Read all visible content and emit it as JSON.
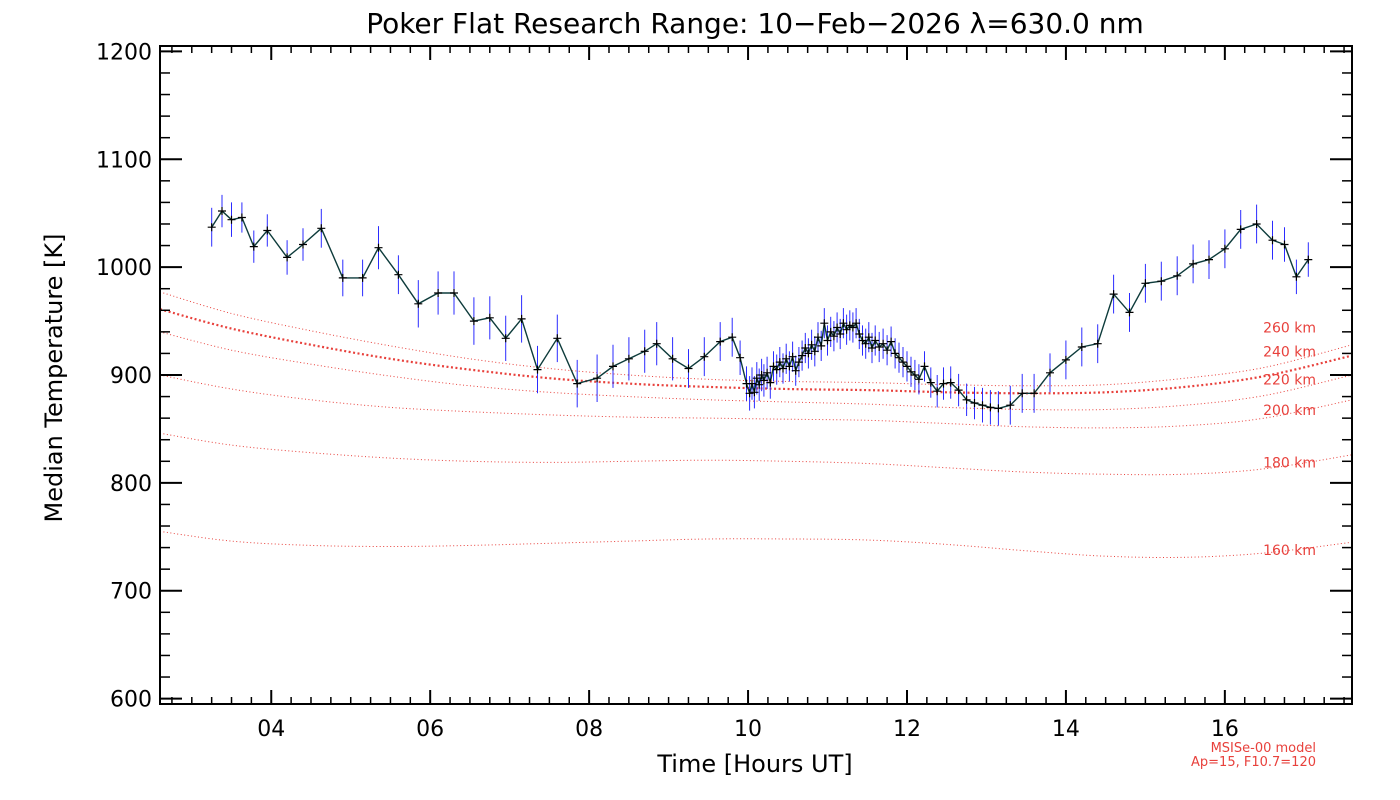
{
  "chart_data": {
    "type": "line",
    "title": "Poker Flat Research Range: 10−Feb−2026 λ=630.0 nm",
    "xlabel": "Time [Hours UT]",
    "ylabel": "Median Temperature [K]",
    "xlim": [
      2.6,
      17.6
    ],
    "ylim": [
      595,
      1205
    ],
    "x_ticks": [
      4,
      6,
      8,
      10,
      12,
      14,
      16
    ],
    "x_tick_labels": [
      "04",
      "06",
      "08",
      "10",
      "12",
      "14",
      "16"
    ],
    "y_ticks": [
      600,
      700,
      800,
      900,
      1000,
      1100,
      1200
    ],
    "y_tick_labels": [
      "600",
      "700",
      "800",
      "900",
      "1000",
      "1100",
      "1200"
    ],
    "grid": false,
    "model_note": [
      "MSISe-00 model",
      "Ap=15, F10.7=120"
    ],
    "colors": {
      "data_line": "#0d3b3b",
      "error_bar": "#2b2bff",
      "model": "#e8413c",
      "axis": "#000000"
    },
    "series": [
      {
        "x": [
          3.25,
          3.38,
          3.5,
          3.63,
          3.78,
          3.95,
          4.2,
          4.4,
          4.63,
          4.9,
          5.15,
          5.35,
          5.6,
          5.85,
          6.1,
          6.3,
          6.55,
          6.75,
          6.95,
          7.15,
          7.35,
          7.6,
          7.85,
          8.1,
          8.3,
          8.5,
          8.7,
          8.85,
          9.05,
          9.25,
          9.45,
          9.65,
          9.8,
          9.9,
          9.98,
          10.02,
          10.05,
          10.08,
          10.11,
          10.14,
          10.17,
          10.2,
          10.24,
          10.28,
          10.32,
          10.36,
          10.4,
          10.44,
          10.48,
          10.52,
          10.56,
          10.6,
          10.64,
          10.68,
          10.72,
          10.76,
          10.8,
          10.84,
          10.88,
          10.92,
          10.96,
          11.0,
          11.04,
          11.08,
          11.12,
          11.16,
          11.2,
          11.24,
          11.28,
          11.32,
          11.36,
          11.4,
          11.44,
          11.48,
          11.52,
          11.56,
          11.6,
          11.65,
          11.7,
          11.75,
          11.8,
          11.85,
          11.9,
          11.95,
          12.0,
          12.05,
          12.1,
          12.15,
          12.22,
          12.3,
          12.38,
          12.46,
          12.55,
          12.65,
          12.75,
          12.85,
          12.95,
          13.05,
          13.15,
          13.3,
          13.45,
          13.6,
          13.8,
          14.0,
          14.2,
          14.4,
          14.6,
          14.8,
          15.0,
          15.2,
          15.4,
          15.6,
          15.8,
          16.0,
          16.2,
          16.4,
          16.6,
          16.75,
          16.9,
          17.05
        ],
        "y": [
          1037,
          1052,
          1044,
          1046,
          1019,
          1034,
          1009,
          1021,
          1036,
          990,
          990,
          1018,
          993,
          966,
          976,
          976,
          950,
          953,
          934,
          952,
          905,
          934,
          892,
          897,
          908,
          915,
          922,
          929,
          915,
          906,
          917,
          931,
          935,
          916,
          892,
          883,
          892,
          884,
          897,
          891,
          900,
          895,
          902,
          893,
          908,
          905,
          912,
          906,
          915,
          908,
          917,
          904,
          912,
          918,
          925,
          920,
          928,
          922,
          935,
          927,
          948,
          932,
          940,
          936,
          944,
          938,
          948,
          942,
          946,
          944,
          948,
          938,
          932,
          929,
          935,
          925,
          932,
          926,
          929,
          923,
          931,
          920,
          916,
          912,
          908,
          903,
          900,
          896,
          908,
          893,
          885,
          892,
          893,
          886,
          877,
          874,
          872,
          870,
          869,
          872,
          883,
          883,
          902,
          914,
          926,
          929,
          975,
          958,
          985,
          987,
          992,
          1003,
          1007,
          1017,
          1035,
          1040,
          1025,
          1021,
          991,
          1007
        ],
        "err": [
          18,
          15,
          16,
          14,
          15,
          15,
          16,
          15,
          18,
          17,
          17,
          20,
          18,
          22,
          20,
          20,
          22,
          20,
          21,
          22,
          22,
          22,
          22,
          22,
          20,
          20,
          20,
          20,
          20,
          18,
          18,
          18,
          18,
          16,
          16,
          16,
          15,
          15,
          15,
          15,
          15,
          15,
          15,
          15,
          14,
          14,
          14,
          14,
          14,
          14,
          14,
          14,
          14,
          14,
          14,
          14,
          14,
          14,
          14,
          14,
          14,
          14,
          14,
          14,
          14,
          14,
          14,
          14,
          14,
          14,
          14,
          14,
          14,
          14,
          14,
          14,
          14,
          14,
          14,
          14,
          14,
          14,
          14,
          14,
          14,
          14,
          14,
          14,
          14,
          14,
          15,
          15,
          15,
          15,
          15,
          15,
          16,
          16,
          16,
          18,
          18,
          18,
          18,
          18,
          18,
          18,
          18,
          18,
          18,
          18,
          18,
          18,
          18,
          18,
          18,
          18,
          18,
          16,
          16,
          16
        ]
      }
    ],
    "model_x": [
      2.6,
      3.5,
      4.5,
      5.5,
      6.5,
      7.5,
      8.5,
      9.5,
      10.5,
      11.5,
      12.5,
      13.5,
      14.5,
      15.5,
      16.5,
      17.6
    ],
    "model_curves": [
      {
        "name": "160 km",
        "values": [
          755,
          746,
          742,
          741,
          742,
          744,
          746,
          748,
          748,
          747,
          743,
          737,
          732,
          731,
          735,
          745
        ]
      },
      {
        "name": "180 km",
        "values": [
          846,
          835,
          828,
          823,
          820,
          819,
          820,
          821,
          820,
          818,
          814,
          810,
          808,
          808,
          813,
          826
        ]
      },
      {
        "name": "200 km",
        "values": [
          900,
          887,
          877,
          870,
          866,
          863,
          861,
          860,
          859,
          858,
          855,
          852,
          851,
          853,
          860,
          877
        ]
      },
      {
        "name": "220 km",
        "values": [
          940,
          923,
          910,
          899,
          890,
          884,
          880,
          877,
          875,
          873,
          870,
          868,
          868,
          872,
          881,
          900
        ]
      },
      {
        "name": "240 km",
        "values": [
          961,
          943,
          928,
          915,
          905,
          897,
          892,
          889,
          887,
          886,
          884,
          883,
          884,
          889,
          899,
          918
        ]
      },
      {
        "name": "260 km",
        "values": [
          977,
          957,
          941,
          927,
          915,
          906,
          900,
          896,
          894,
          893,
          891,
          890,
          891,
          897,
          907,
          928
        ]
      }
    ]
  }
}
